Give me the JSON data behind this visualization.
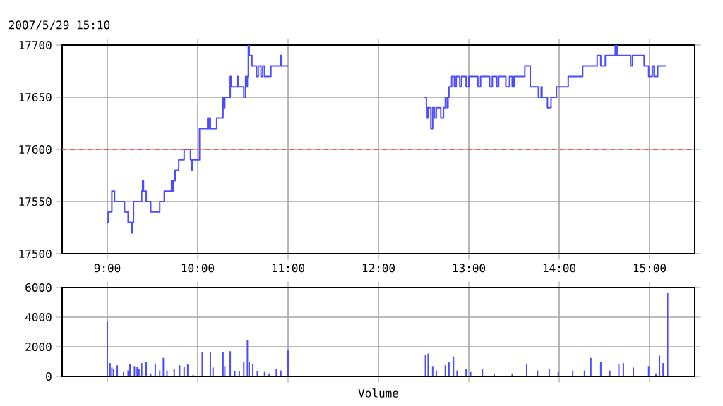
{
  "chart_data": [
    {
      "type": "step",
      "subtitle": "2007/5/29 15:10",
      "x": [
        9.0,
        9.01,
        9.05,
        9.08,
        9.19,
        9.23,
        9.27,
        9.28,
        9.29,
        9.38,
        9.39,
        9.4,
        9.43,
        9.48,
        9.58,
        9.63,
        9.71,
        9.72,
        9.73,
        9.75,
        9.79,
        9.85,
        9.92,
        9.93,
        9.94,
        10.02,
        10.11,
        10.12,
        10.13,
        10.14,
        10.21,
        10.28,
        10.29,
        10.3,
        10.36,
        10.37,
        10.44,
        10.45,
        10.51,
        10.53,
        10.54,
        10.55,
        10.56,
        10.57,
        10.6,
        10.65,
        10.67,
        10.7,
        10.72,
        10.74,
        10.81,
        10.92,
        10.93,
        11.0,
        11.01,
        12.5,
        12.53,
        12.54,
        12.55,
        12.58,
        12.6,
        12.62,
        12.64,
        12.69,
        12.72,
        12.74,
        12.76,
        12.77,
        12.78,
        12.81,
        12.84,
        12.86,
        12.9,
        12.92,
        12.97,
        13.0,
        13.1,
        13.13,
        13.23,
        13.26,
        13.31,
        13.33,
        13.41,
        13.45,
        13.48,
        13.5,
        13.62,
        13.68,
        13.77,
        13.8,
        13.81,
        13.87,
        13.91,
        13.97,
        14.1,
        14.26,
        14.42,
        14.46,
        14.51,
        14.62,
        14.64,
        14.79,
        14.81,
        14.94,
        14.99,
        15.03,
        15.05,
        15.09,
        15.18
      ],
      "series": [
        {
          "color": "#4c4cff",
          "values": [
            17530,
            17540,
            17560,
            17550,
            17540,
            17530,
            17520,
            17530,
            17550,
            17560,
            17570,
            17560,
            17550,
            17540,
            17550,
            17560,
            17570,
            17560,
            17570,
            17580,
            17590,
            17600,
            17590,
            17580,
            17590,
            17620,
            17630,
            17620,
            17630,
            17620,
            17630,
            17650,
            17640,
            17650,
            17670,
            17660,
            17670,
            17660,
            17650,
            17670,
            17660,
            17670,
            17700,
            17690,
            17680,
            17670,
            17680,
            17670,
            17680,
            17670,
            17680,
            17690,
            17680,
            17680,
            null,
            17650,
            17640,
            17630,
            17640,
            17620,
            17640,
            17630,
            17640,
            17630,
            17640,
            17650,
            17640,
            17650,
            17660,
            17670,
            17660,
            17670,
            17660,
            17670,
            17660,
            17670,
            17660,
            17670,
            17660,
            17670,
            17660,
            17670,
            17660,
            17670,
            17660,
            17670,
            17680,
            17660,
            17650,
            17660,
            17650,
            17640,
            17650,
            17660,
            17670,
            17680,
            17690,
            17680,
            17690,
            17700,
            17690,
            17680,
            17690,
            17680,
            17670,
            17680,
            17670,
            17680,
            17680
          ]
        }
      ],
      "xlim": [
        8.5,
        15.5
      ],
      "xticks": [
        {
          "value": 9,
          "label": "9:00"
        },
        {
          "value": 10,
          "label": "10:00"
        },
        {
          "value": 11,
          "label": "11:00"
        },
        {
          "value": 12,
          "label": "12:00"
        },
        {
          "value": 13,
          "label": "13:00"
        },
        {
          "value": 14,
          "label": "14:00"
        },
        {
          "value": 15,
          "label": "15:00"
        }
      ],
      "ylim": [
        17500,
        17700
      ],
      "yticks": [
        17500,
        17550,
        17600,
        17650,
        17700
      ],
      "ref_lines": [
        {
          "axis": "y",
          "value": 17600,
          "color": "#ff4c4c",
          "line_style": "dashed"
        }
      ],
      "grid": true
    },
    {
      "type": "bar",
      "xlabel": "Volume",
      "x": [
        9.0,
        9.03,
        9.05,
        9.07,
        9.11,
        9.18,
        9.23,
        9.25,
        9.3,
        9.33,
        9.35,
        9.38,
        9.43,
        9.48,
        9.53,
        9.58,
        9.62,
        9.66,
        9.74,
        9.8,
        9.85,
        9.89,
        9.95,
        10.05,
        10.14,
        10.17,
        10.28,
        10.3,
        10.36,
        10.41,
        10.46,
        10.51,
        10.55,
        10.57,
        10.61,
        10.66,
        10.74,
        10.79,
        10.87,
        10.92,
        11.0,
        12.52,
        12.55,
        12.6,
        12.64,
        12.74,
        12.78,
        12.83,
        12.87,
        12.97,
        13.02,
        13.15,
        13.28,
        13.48,
        13.64,
        13.76,
        13.89,
        13.99,
        14.15,
        14.28,
        14.35,
        14.46,
        14.56,
        14.66,
        14.71,
        14.82,
        14.99,
        15.07,
        15.11,
        15.15,
        15.2
      ],
      "series": [
        {
          "color": "#4c4cff",
          "values": [
            3700,
            900,
            600,
            500,
            750,
            300,
            400,
            850,
            700,
            650,
            500,
            900,
            950,
            200,
            850,
            400,
            1250,
            400,
            500,
            750,
            650,
            800,
            100,
            1650,
            1650,
            600,
            1650,
            700,
            1700,
            350,
            350,
            1000,
            2450,
            1000,
            850,
            350,
            300,
            200,
            500,
            400,
            1750,
            1450,
            1550,
            700,
            400,
            750,
            950,
            1350,
            400,
            500,
            300,
            500,
            200,
            200,
            800,
            400,
            500,
            300,
            400,
            400,
            1250,
            1000,
            400,
            800,
            900,
            600,
            700,
            200,
            1400,
            900,
            5650
          ]
        }
      ],
      "xlim": [
        8.5,
        15.5
      ],
      "xticks": [
        9,
        10,
        11,
        12,
        13,
        14,
        15
      ],
      "tick_labels": "y",
      "ylim": [
        0,
        6000
      ],
      "yticks": [
        0,
        2000,
        4000,
        6000
      ],
      "grid": true
    }
  ]
}
